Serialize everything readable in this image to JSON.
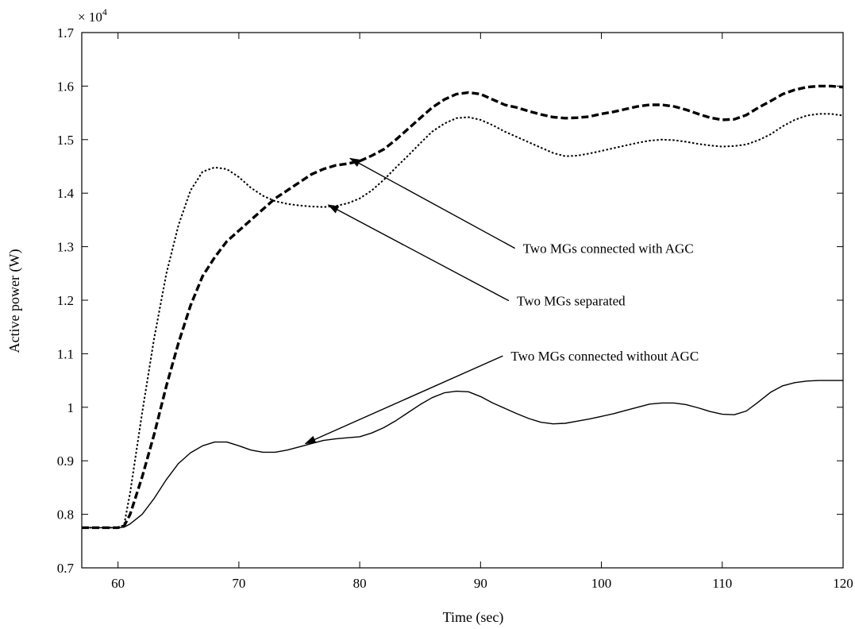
{
  "chart_data": {
    "type": "line",
    "title": "",
    "xlabel": "Time (sec)",
    "ylabel": "Active power (W)",
    "y_multiplier_label": "× 10",
    "y_multiplier_exponent": "4",
    "xlim": [
      57,
      120
    ],
    "ylim": [
      0.7,
      1.7
    ],
    "x_ticks": [
      60,
      70,
      80,
      90,
      100,
      110,
      120
    ],
    "x_tick_labels": [
      "60",
      "70",
      "80",
      "90",
      "100",
      "110",
      "120"
    ],
    "y_ticks": [
      0.7,
      0.8,
      0.9,
      1.0,
      1.1,
      1.2,
      1.3,
      1.4,
      1.5,
      1.6,
      1.7
    ],
    "y_tick_labels": [
      "0.7",
      "0.8",
      "0.9",
      "1",
      "1.1",
      "1.2",
      "1.3",
      "1.4",
      "1.5",
      "1.6",
      "1.7"
    ],
    "grid": false,
    "legend": "none",
    "series": [
      {
        "line_style": "dashed-thick",
        "color": "#000000",
        "x": [
          57,
          60,
          60.5,
          61,
          62,
          63,
          64,
          65,
          66,
          67,
          68,
          69,
          70,
          71,
          72,
          73,
          74,
          75,
          76,
          77,
          78,
          79,
          80,
          81,
          82,
          83,
          84,
          85,
          86,
          87,
          88,
          89,
          90,
          91,
          92,
          93,
          94,
          95,
          96,
          97,
          98,
          99,
          100,
          101,
          102,
          103,
          104,
          105,
          106,
          107,
          108,
          109,
          110,
          111,
          112,
          113,
          114,
          115,
          116,
          117,
          118,
          119,
          120
        ],
        "y": [
          0.775,
          0.775,
          0.778,
          0.8,
          0.87,
          0.95,
          1.04,
          1.12,
          1.19,
          1.245,
          1.28,
          1.31,
          1.33,
          1.35,
          1.37,
          1.39,
          1.405,
          1.42,
          1.435,
          1.445,
          1.452,
          1.455,
          1.46,
          1.47,
          1.482,
          1.5,
          1.52,
          1.54,
          1.56,
          1.575,
          1.585,
          1.588,
          1.585,
          1.575,
          1.565,
          1.56,
          1.553,
          1.547,
          1.542,
          1.54,
          1.541,
          1.543,
          1.548,
          1.552,
          1.557,
          1.562,
          1.565,
          1.565,
          1.562,
          1.556,
          1.548,
          1.541,
          1.537,
          1.538,
          1.546,
          1.56,
          1.572,
          1.585,
          1.593,
          1.598,
          1.6,
          1.6,
          1.598
        ]
      },
      {
        "line_style": "dotted",
        "color": "#000000",
        "x": [
          57,
          60,
          60.5,
          61,
          62,
          63,
          64,
          65,
          66,
          67,
          68,
          69,
          70,
          71,
          72,
          73,
          74,
          75,
          76,
          77,
          78,
          79,
          80,
          81,
          82,
          83,
          84,
          85,
          86,
          87,
          88,
          89,
          90,
          91,
          92,
          93,
          94,
          95,
          96,
          97,
          98,
          99,
          100,
          101,
          102,
          103,
          104,
          105,
          106,
          107,
          108,
          109,
          110,
          111,
          112,
          113,
          114,
          115,
          116,
          117,
          118,
          119,
          120
        ],
        "y": [
          0.775,
          0.775,
          0.78,
          0.84,
          0.99,
          1.13,
          1.25,
          1.34,
          1.405,
          1.44,
          1.448,
          1.445,
          1.43,
          1.41,
          1.395,
          1.385,
          1.38,
          1.377,
          1.375,
          1.374,
          1.376,
          1.381,
          1.39,
          1.405,
          1.425,
          1.448,
          1.47,
          1.493,
          1.515,
          1.53,
          1.54,
          1.542,
          1.537,
          1.527,
          1.515,
          1.505,
          1.495,
          1.485,
          1.475,
          1.469,
          1.47,
          1.474,
          1.479,
          1.484,
          1.489,
          1.494,
          1.498,
          1.5,
          1.499,
          1.496,
          1.492,
          1.489,
          1.487,
          1.488,
          1.491,
          1.499,
          1.51,
          1.525,
          1.537,
          1.545,
          1.548,
          1.548,
          1.545
        ]
      },
      {
        "line_style": "solid",
        "color": "#000000",
        "x": [
          57,
          60,
          60.5,
          61,
          62,
          63,
          64,
          65,
          66,
          67,
          68,
          69,
          70,
          71,
          72,
          73,
          74,
          75,
          76,
          77,
          78,
          79,
          80,
          81,
          82,
          83,
          84,
          85,
          86,
          87,
          88,
          89,
          90,
          91,
          92,
          93,
          94,
          95,
          96,
          97,
          98,
          99,
          100,
          101,
          102,
          103,
          104,
          105,
          106,
          107,
          108,
          109,
          110,
          111,
          112,
          113,
          114,
          115,
          116,
          117,
          118,
          119,
          120
        ],
        "y": [
          0.775,
          0.775,
          0.776,
          0.782,
          0.8,
          0.83,
          0.865,
          0.895,
          0.915,
          0.928,
          0.935,
          0.935,
          0.928,
          0.92,
          0.916,
          0.916,
          0.92,
          0.926,
          0.932,
          0.938,
          0.941,
          0.943,
          0.945,
          0.952,
          0.962,
          0.975,
          0.99,
          1.005,
          1.018,
          1.027,
          1.03,
          1.029,
          1.02,
          1.008,
          0.998,
          0.988,
          0.979,
          0.972,
          0.969,
          0.97,
          0.974,
          0.978,
          0.983,
          0.988,
          0.994,
          1.0,
          1.006,
          1.008,
          1.008,
          1.005,
          0.999,
          0.992,
          0.987,
          0.986,
          0.993,
          1.01,
          1.028,
          1.04,
          1.046,
          1.049,
          1.05,
          1.05,
          1.05
        ]
      }
    ],
    "annotations": [
      {
        "text": "Two MGs connected with AGC",
        "text_x": 93.5,
        "text_y": 1.297,
        "arrow_to_x": 79.2,
        "arrow_to_y": 1.465
      },
      {
        "text": "Two MGs separated",
        "text_x": 93.0,
        "text_y": 1.199,
        "arrow_to_x": 77.4,
        "arrow_to_y": 1.378
      },
      {
        "text": "Two MGs connected without AGC",
        "text_x": 92.5,
        "text_y": 1.096,
        "arrow_to_x": 75.5,
        "arrow_to_y": 0.932
      }
    ]
  }
}
